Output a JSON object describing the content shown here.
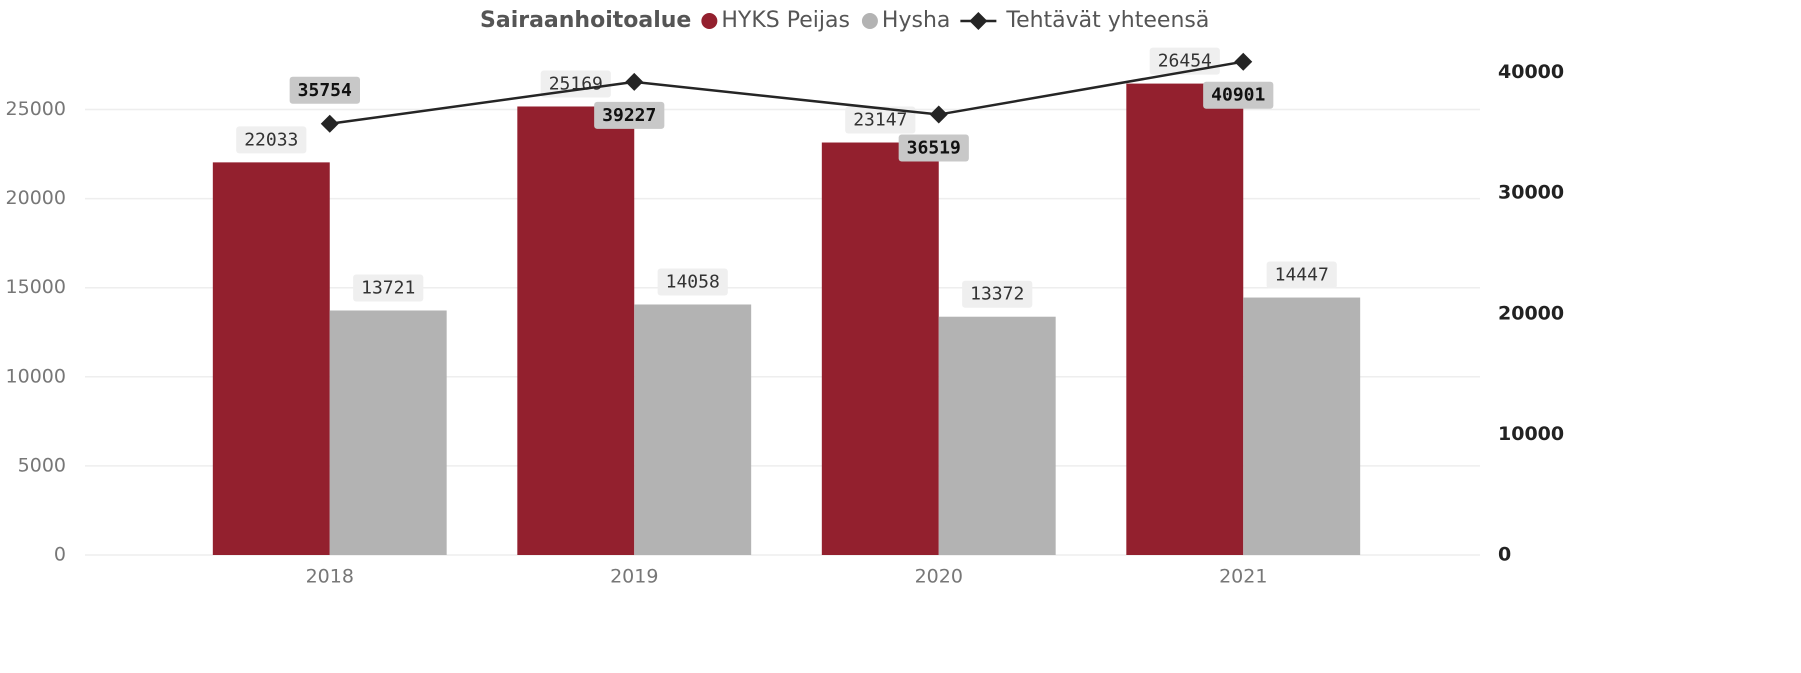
{
  "chart_data": {
    "type": "bar",
    "legend_title": "Sairaanhoitoalue",
    "categories": [
      "2018",
      "2019",
      "2020",
      "2021"
    ],
    "series": [
      {
        "name": "HYKS Peijas",
        "color": "#93202e",
        "type": "bar",
        "values": [
          22033,
          25169,
          23147,
          26454
        ]
      },
      {
        "name": "Hysha",
        "color": "#b3b3b3",
        "type": "bar",
        "values": [
          13721,
          14058,
          13372,
          14447
        ]
      },
      {
        "name": "Tehtävät yhteensä",
        "color": "#252525",
        "type": "line",
        "axis": "y2",
        "values": [
          35754,
          39227,
          36519,
          40901
        ]
      }
    ],
    "ylim": [
      0,
      28900
    ],
    "yticks": [
      0,
      5000,
      10000,
      15000,
      20000,
      25000
    ],
    "y2lim": [
      0,
      42700
    ],
    "y2ticks": [
      0,
      10000,
      20000,
      30000,
      40000
    ],
    "grid": true,
    "legend": "top"
  }
}
